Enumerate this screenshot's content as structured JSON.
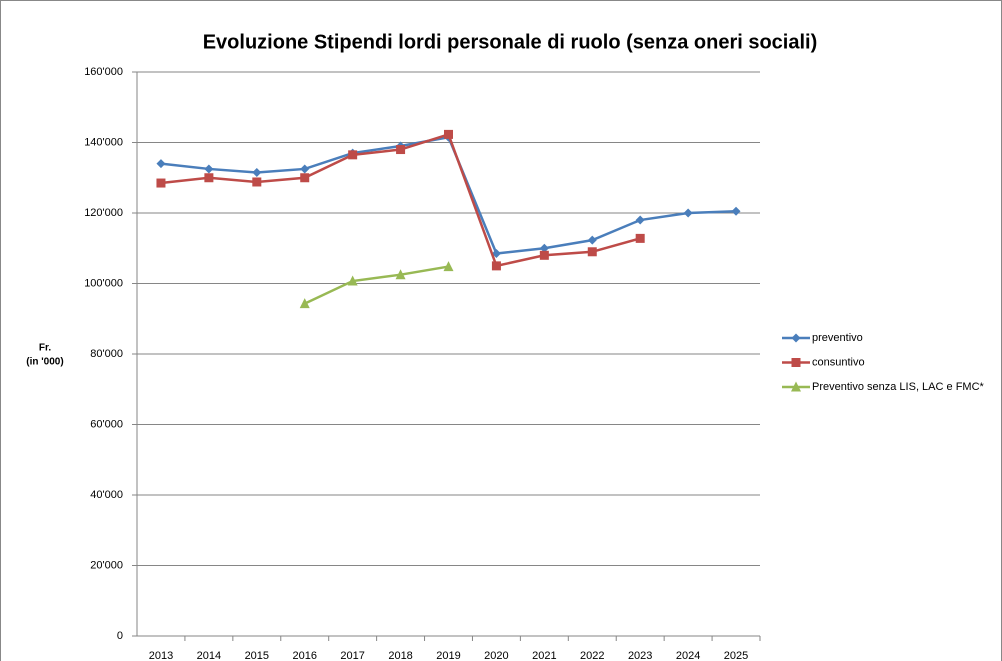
{
  "chart_data": {
    "type": "line",
    "title": "Evoluzione Stipendi lordi personale di ruolo (senza oneri sociali)",
    "ylabel": [
      "Fr.",
      "(in '000)"
    ],
    "categories": [
      "2013",
      "2014",
      "2015",
      "2016",
      "2017",
      "2018",
      "2019",
      "2020",
      "2021",
      "2022",
      "2023",
      "2024",
      "2025"
    ],
    "series": [
      {
        "name": "preventivo",
        "color": "#4a7ebb",
        "marker": "diamond",
        "values": [
          134000,
          132500,
          131500,
          132500,
          137000,
          139000,
          141500,
          108500,
          110000,
          112300,
          118000,
          120000,
          120500
        ]
      },
      {
        "name": "consuntivo",
        "color": "#be4b48",
        "marker": "square",
        "values": [
          128500,
          130000,
          128800,
          130000,
          136500,
          138000,
          142300,
          105000,
          108000,
          109000,
          112800,
          null,
          null
        ]
      },
      {
        "name": "Preventivo senza  LIS, LAC e FMC*",
        "color": "#98b954",
        "marker": "triangle",
        "values": [
          null,
          null,
          null,
          94300,
          100700,
          102500,
          104800,
          null,
          null,
          null,
          null,
          null,
          null
        ]
      }
    ],
    "ylim": [
      0,
      160000
    ],
    "yticks": [
      0,
      {
        "value": 20000,
        "label": "20'000"
      },
      {
        "value": 40000,
        "label": "40'000"
      },
      {
        "value": 60000,
        "label": "60'000"
      },
      {
        "value": 80000,
        "label": "80'000"
      },
      {
        "value": 100000,
        "label": "100'000"
      },
      {
        "value": 120000,
        "label": "120'000"
      },
      {
        "value": 140000,
        "label": "140'000"
      },
      {
        "value": 160000,
        "label": "160'000"
      }
    ],
    "grid": true,
    "legend": "right"
  }
}
